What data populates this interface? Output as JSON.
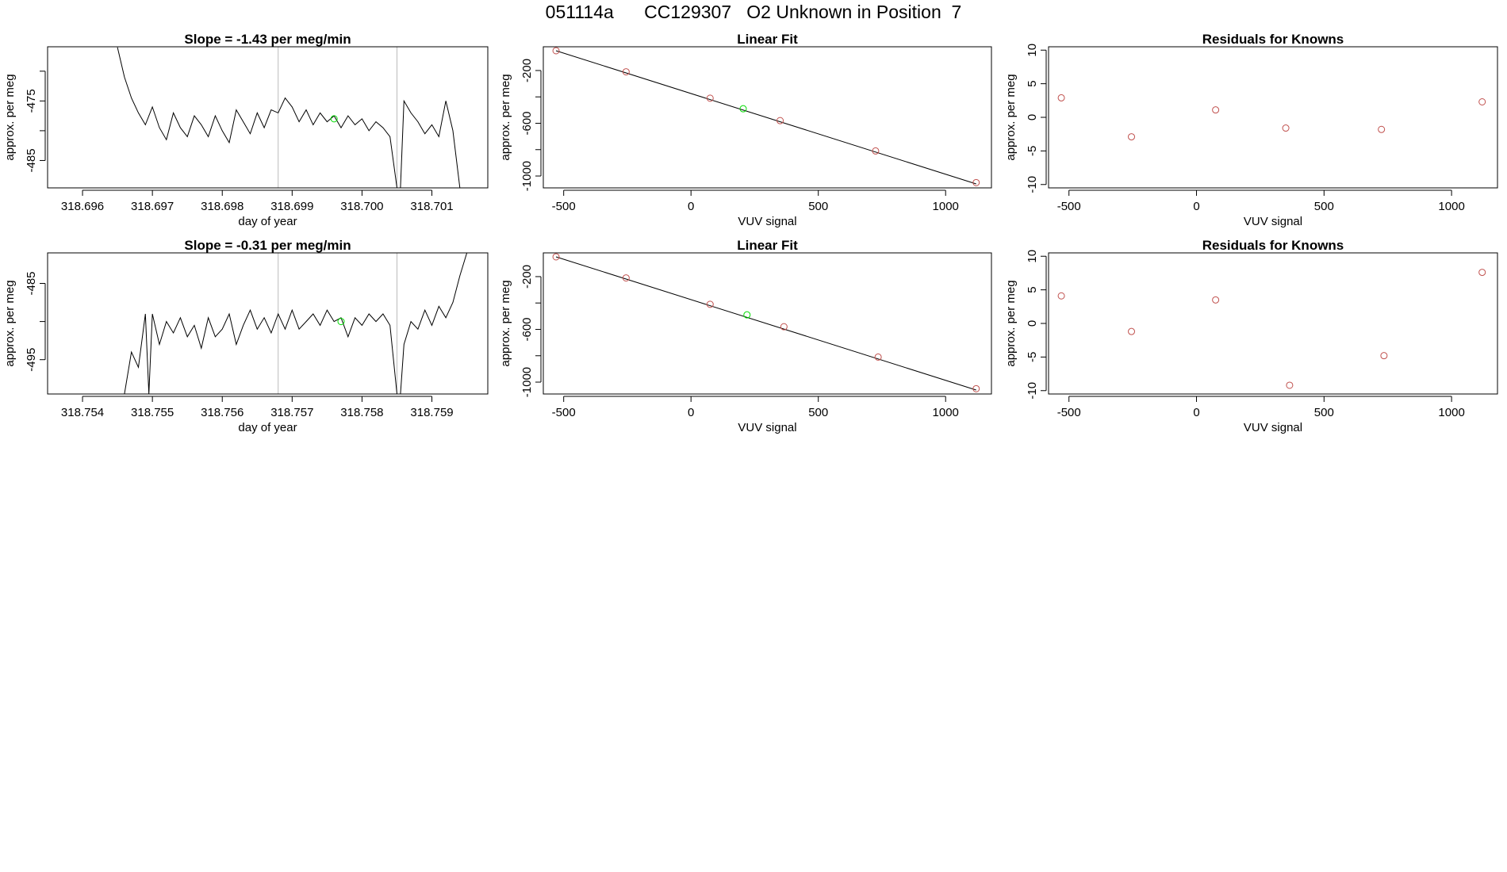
{
  "page": {
    "title": "051114a      CC129307   O2 Unknown in Position  7"
  },
  "colors": {
    "line": "#000000",
    "known_point": "#c0504d",
    "unknown_point": "#00dd00",
    "vline": "#bbbbbb",
    "axis": "#000000"
  },
  "chart_data": [
    {
      "type": "line",
      "title": "Slope =  -1.43  per meg/min",
      "xlabel": "day of year",
      "ylabel": "approx. per meg",
      "xlim": [
        318.6955,
        318.7018
      ],
      "ylim": [
        -489.6,
        -465.9
      ],
      "xticks": [
        318.696,
        318.697,
        318.698,
        318.699,
        318.7,
        318.701
      ],
      "xtick_labels": [
        "318.696",
        "318.697",
        "318.698",
        "318.699",
        "318.700",
        "318.701"
      ],
      "yticks": [
        -485,
        -480,
        -475,
        -470
      ],
      "ytick_labels": [
        "-485",
        "",
        "-475",
        ""
      ],
      "vlines": [
        318.6988,
        318.7005
      ],
      "unknown_point": {
        "x": 318.6996,
        "y": -478.0
      },
      "series": [
        {
          "x": [
            318.6965,
            318.6966,
            318.6967,
            318.6968,
            318.6969,
            318.697,
            318.6971,
            318.6972,
            318.6973,
            318.6974,
            318.6975,
            318.6976,
            318.6977,
            318.6978,
            318.6979,
            318.698,
            318.6981,
            318.6982,
            318.6983,
            318.6984,
            318.6985,
            318.6986,
            318.6987,
            318.6988,
            318.6989,
            318.699,
            318.6991,
            318.6992,
            318.6993,
            318.6994,
            318.6995,
            318.6996,
            318.6997,
            318.6998,
            318.6999,
            318.7,
            318.7001,
            318.7002,
            318.7003,
            318.7004,
            318.7005,
            318.70055,
            318.7006,
            318.7007,
            318.7008,
            318.7009,
            318.701,
            318.7011,
            318.7012,
            318.7013,
            318.7014
          ],
          "y": [
            -466.0,
            -471.0,
            -474.5,
            -477.0,
            -479.0,
            -476.0,
            -479.5,
            -481.5,
            -477.0,
            -479.5,
            -481.0,
            -477.5,
            -479.0,
            -481.0,
            -477.5,
            -480.0,
            -482.0,
            -476.5,
            -478.5,
            -480.5,
            -477.0,
            -479.5,
            -476.5,
            -477.0,
            -474.5,
            -476.0,
            -478.5,
            -476.5,
            -479.0,
            -477.0,
            -478.5,
            -477.5,
            -479.5,
            -477.5,
            -479.0,
            -478.0,
            -480.0,
            -478.5,
            -479.5,
            -481.0,
            -489.6,
            -489.6,
            -475.0,
            -477.0,
            -478.5,
            -480.5,
            -479.0,
            -481.0,
            -475.0,
            -480.0,
            -489.6
          ]
        }
      ]
    },
    {
      "type": "scatter",
      "title": "Linear Fit",
      "xlabel": "VUV signal",
      "ylabel": "approx. per meg",
      "xlim": [
        -580,
        1180
      ],
      "ylim": [
        -1090,
        -20
      ],
      "xticks": [
        -500,
        0,
        500,
        1000
      ],
      "yticks": [
        -1000,
        -800,
        -600,
        -400,
        -200
      ],
      "ytick_labels": [
        "-1000",
        "",
        "-600",
        "",
        "-200"
      ],
      "fit_line": {
        "x": [
          -530,
          1120
        ],
        "y": [
          -50,
          -1060
        ]
      },
      "known_points": {
        "x": [
          -530,
          -255,
          75,
          350,
          725,
          1120
        ],
        "y": [
          -50,
          -210,
          -410,
          -580,
          -810,
          -1050
        ]
      },
      "unknown_point": {
        "x": 205,
        "y": -490
      }
    },
    {
      "type": "scatter",
      "title": "Residuals for Knowns",
      "xlabel": "VUV signal",
      "ylabel": "approx. per meg",
      "xlim": [
        -580,
        1180
      ],
      "ylim": [
        -10.5,
        10.5
      ],
      "xticks": [
        -500,
        0,
        500,
        1000
      ],
      "yticks": [
        -10,
        -5,
        0,
        5,
        10
      ],
      "known_points": {
        "x": [
          -530,
          -255,
          75,
          350,
          725,
          1120
        ],
        "y": [
          2.9,
          -2.9,
          1.1,
          -1.6,
          -1.8,
          2.3
        ]
      }
    },
    {
      "type": "line",
      "title": "Slope =  -0.31  per meg/min",
      "xlabel": "day of year",
      "ylabel": "approx. per meg",
      "xlim": [
        318.7535,
        318.7598
      ],
      "ylim": [
        -499.5,
        -481.0
      ],
      "xticks": [
        318.754,
        318.755,
        318.756,
        318.757,
        318.758,
        318.759
      ],
      "xtick_labels": [
        "318.754",
        "318.755",
        "318.756",
        "318.757",
        "318.758",
        "318.759"
      ],
      "yticks": [
        -495,
        -490,
        -485
      ],
      "ytick_labels": [
        "-495",
        "",
        "-485"
      ],
      "vlines": [
        318.7568,
        318.7585
      ],
      "unknown_point": {
        "x": 318.7577,
        "y": -490.0
      },
      "series": [
        {
          "x": [
            318.7546,
            318.7547,
            318.7548,
            318.7549,
            318.75495,
            318.755,
            318.7551,
            318.7552,
            318.7553,
            318.7554,
            318.7555,
            318.7556,
            318.7557,
            318.7558,
            318.7559,
            318.756,
            318.7561,
            318.7562,
            318.7563,
            318.7564,
            318.7565,
            318.7566,
            318.7567,
            318.7568,
            318.7569,
            318.757,
            318.7571,
            318.7572,
            318.7573,
            318.7574,
            318.7575,
            318.7576,
            318.7577,
            318.7578,
            318.7579,
            318.758,
            318.7581,
            318.7582,
            318.7583,
            318.7584,
            318.7585,
            318.75855,
            318.7586,
            318.7587,
            318.7588,
            318.7589,
            318.759,
            318.7591,
            318.7592,
            318.7593,
            318.7594,
            318.7595
          ],
          "y": [
            -499.5,
            -494.0,
            -496.0,
            -489.0,
            -499.5,
            -489.0,
            -493.0,
            -490.0,
            -491.5,
            -489.5,
            -492.0,
            -490.5,
            -493.5,
            -489.5,
            -492.0,
            -491.0,
            -489.0,
            -493.0,
            -490.5,
            -488.5,
            -491.0,
            -489.5,
            -491.5,
            -489.0,
            -491.0,
            -488.5,
            -491.0,
            -490.0,
            -489.0,
            -490.5,
            -488.5,
            -490.0,
            -489.5,
            -492.0,
            -489.5,
            -490.5,
            -489.0,
            -490.0,
            -489.0,
            -490.5,
            -499.5,
            -499.5,
            -493.0,
            -490.0,
            -491.0,
            -488.5,
            -490.5,
            -488.0,
            -489.5,
            -487.5,
            -484.0,
            -481.0
          ]
        }
      ]
    },
    {
      "type": "scatter",
      "title": "Linear Fit",
      "xlabel": "VUV signal",
      "ylabel": "approx. per meg",
      "xlim": [
        -580,
        1180
      ],
      "ylim": [
        -1090,
        -20
      ],
      "xticks": [
        -500,
        0,
        500,
        1000
      ],
      "yticks": [
        -1000,
        -800,
        -600,
        -400,
        -200
      ],
      "ytick_labels": [
        "-1000",
        "",
        "-600",
        "",
        "-200"
      ],
      "fit_line": {
        "x": [
          -530,
          1120
        ],
        "y": [
          -50,
          -1060
        ]
      },
      "known_points": {
        "x": [
          -530,
          -255,
          75,
          365,
          735,
          1120
        ],
        "y": [
          -50,
          -210,
          -410,
          -580,
          -810,
          -1050
        ]
      },
      "unknown_point": {
        "x": 220,
        "y": -490
      }
    },
    {
      "type": "scatter",
      "title": "Residuals for Knowns",
      "xlabel": "VUV signal",
      "ylabel": "approx. per meg",
      "xlim": [
        -580,
        1180
      ],
      "ylim": [
        -10.5,
        10.5
      ],
      "xticks": [
        -500,
        0,
        500,
        1000
      ],
      "yticks": [
        -10,
        -5,
        0,
        5,
        10
      ],
      "known_points": {
        "x": [
          -530,
          -255,
          75,
          365,
          735,
          1120
        ],
        "y": [
          4.1,
          -1.2,
          3.5,
          -9.2,
          -4.8,
          7.6
        ]
      }
    }
  ]
}
